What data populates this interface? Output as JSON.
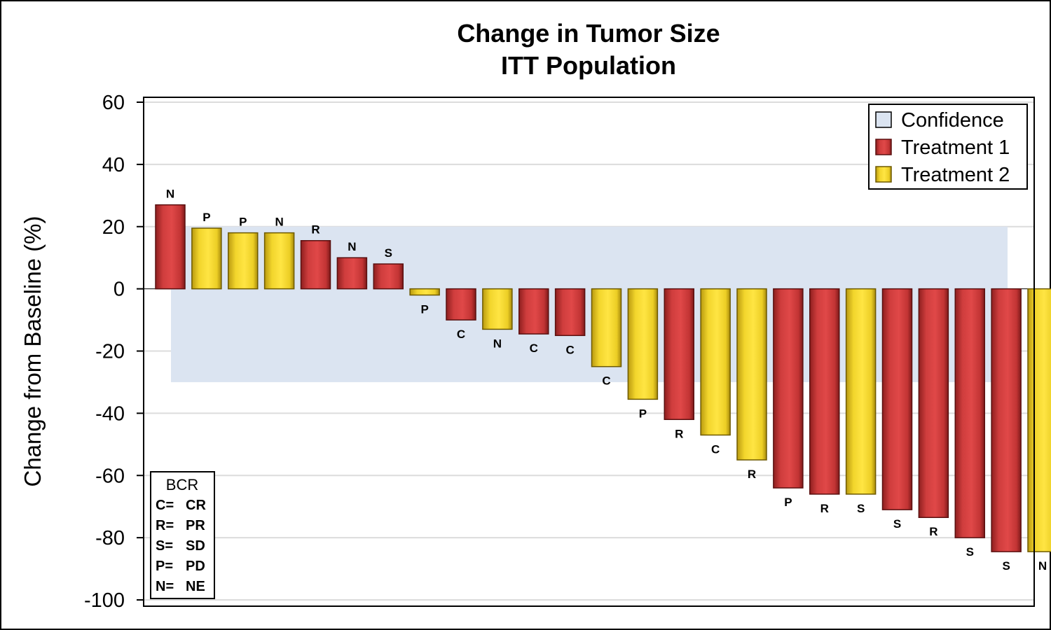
{
  "chart_data": {
    "type": "bar",
    "title": "Change in Tumor Size",
    "subtitle": "ITT Population",
    "ylabel": "Change from Baseline (%)",
    "xlabel": "",
    "ylim": [
      -100,
      60
    ],
    "yticks": [
      "60",
      "40",
      "20",
      "0",
      "-20",
      "-40",
      "-60",
      "-80",
      "-100"
    ],
    "ytick_values": [
      60,
      40,
      20,
      0,
      -20,
      -40,
      -60,
      -80,
      -100
    ],
    "grid": true,
    "confidence_band": [
      -30,
      20
    ],
    "legend_position": "top-right",
    "legend": [
      {
        "name": "Confidence",
        "color": "#dbe4f1"
      },
      {
        "name": "Treatment 1",
        "color": "#d13f3f"
      },
      {
        "name": "Treatment 2",
        "color": "#f5db35"
      }
    ],
    "series": [
      {
        "name": "Treatment 1",
        "color": "#d13f3f"
      },
      {
        "name": "Treatment 2",
        "color": "#f5db35"
      }
    ],
    "values": [
      27,
      19.5,
      18,
      18,
      15.5,
      10,
      8,
      -2,
      -10,
      -13,
      -14.5,
      -15,
      -25,
      -35.5,
      -42,
      -47,
      -55,
      -64,
      -66,
      -66,
      -71,
      -73.5,
      -80,
      -84.5,
      -84.5
    ],
    "groups": [
      "Treatment 1",
      "Treatment 2",
      "Treatment 2",
      "Treatment 2",
      "Treatment 1",
      "Treatment 1",
      "Treatment 1",
      "Treatment 2",
      "Treatment 1",
      "Treatment 2",
      "Treatment 1",
      "Treatment 1",
      "Treatment 2",
      "Treatment 2",
      "Treatment 1",
      "Treatment 2",
      "Treatment 2",
      "Treatment 1",
      "Treatment 1",
      "Treatment 2",
      "Treatment 1",
      "Treatment 1",
      "Treatment 1",
      "Treatment 1",
      "Treatment 2"
    ],
    "labels": [
      "N",
      "P",
      "P",
      "N",
      "R",
      "N",
      "S",
      "P",
      "C",
      "N",
      "C",
      "C",
      "C",
      "P",
      "R",
      "C",
      "R",
      "P",
      "R",
      "S",
      "S",
      "R",
      "S",
      "S",
      "N"
    ],
    "inset_key": {
      "title": "BCR",
      "rows": [
        {
          "code": "C=",
          "value": "CR"
        },
        {
          "code": "R=",
          "value": "PR"
        },
        {
          "code": "S=",
          "value": "SD"
        },
        {
          "code": "P=",
          "value": "PD"
        },
        {
          "code": "N=",
          "value": "NE"
        }
      ]
    }
  }
}
